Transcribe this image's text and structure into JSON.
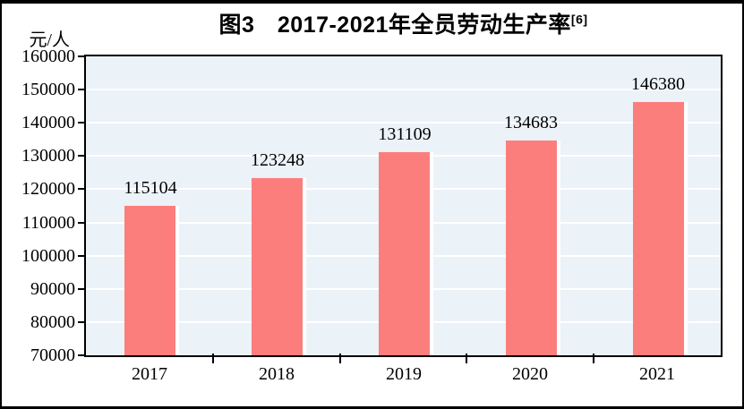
{
  "title": {
    "text": "图3　2017-2021年全员劳动生产率",
    "superscript": "[6]"
  },
  "unit_label": "元/人",
  "colors": {
    "bar": "#FC7E7C",
    "bar_shadow": "#FFFFFF",
    "plot_bg": "#EBF2F8",
    "gridline": "#FFFFFF",
    "axis": "#000000",
    "frame": "#000000",
    "text": "#000000"
  },
  "chart_data": {
    "type": "bar",
    "title": "图3　2017-2021年全员劳动生产率[6]",
    "categories": [
      "2017",
      "2018",
      "2019",
      "2020",
      "2021"
    ],
    "values": [
      115104,
      123248,
      131109,
      134683,
      146380
    ],
    "xlabel": "",
    "ylabel": "元/人",
    "ylim": [
      70000,
      160000
    ],
    "ytick_step": 10000,
    "grid": true,
    "gridline_color": "white",
    "legend": false,
    "data_labels": true
  }
}
